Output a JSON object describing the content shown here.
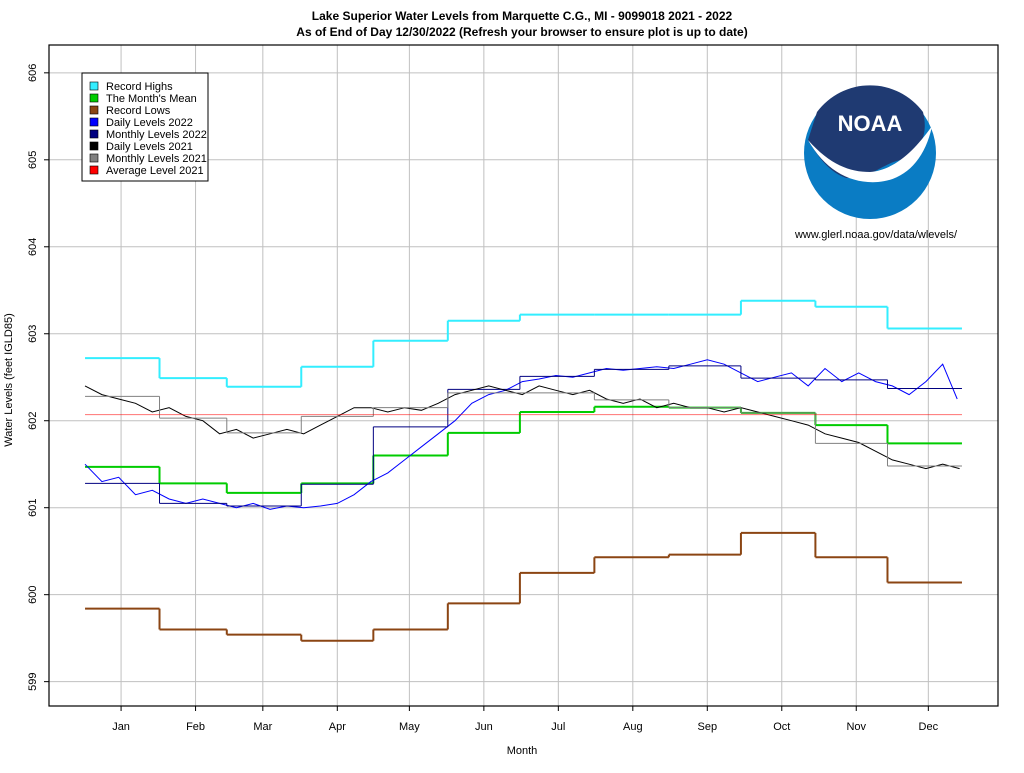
{
  "chart_data": {
    "type": "line",
    "title": "Lake Superior Water Levels from Marquette C.G., MI - 9099018 2021 - 2022",
    "subtitle": "As of End of Day 12/30/2022 (Refresh your browser to ensure plot is up to date)",
    "xlabel": "Month",
    "ylabel": "Water Levels (feet IGLD85)",
    "logo_text": "NOAA",
    "logo_url": "www.glerl.noaa.gov/data/wlevels/",
    "xlim": [
      -15,
      380
    ],
    "ylim": [
      598.72,
      606.32
    ],
    "xticks": [
      {
        "value": 15,
        "label": "Jan"
      },
      {
        "value": 46,
        "label": "Feb"
      },
      {
        "value": 74,
        "label": "Mar"
      },
      {
        "value": 105,
        "label": "Apr"
      },
      {
        "value": 135,
        "label": "May"
      },
      {
        "value": 166,
        "label": "Jun"
      },
      {
        "value": 197,
        "label": "Jul"
      },
      {
        "value": 228,
        "label": "Aug"
      },
      {
        "value": 259,
        "label": "Sep"
      },
      {
        "value": 290,
        "label": "Oct"
      },
      {
        "value": 321,
        "label": "Nov"
      },
      {
        "value": 351,
        "label": "Dec"
      }
    ],
    "yticks": [
      599,
      600,
      601,
      602,
      603,
      604,
      605,
      606
    ],
    "grid": true,
    "legend": "upper left",
    "step_edges": [
      0,
      31,
      59,
      90,
      120,
      151,
      181,
      212,
      243,
      273,
      304,
      334,
      365
    ],
    "series": [
      {
        "name": "Record Highs",
        "color": "#33eeff",
        "drawstyle": "steps",
        "values": [
          602.72,
          602.49,
          602.39,
          602.62,
          602.92,
          603.15,
          603.22,
          603.22,
          603.22,
          603.38,
          603.31,
          603.06
        ]
      },
      {
        "name": "The Month's Mean",
        "color": "#00cc00",
        "drawstyle": "steps",
        "values": [
          601.47,
          601.28,
          601.17,
          601.28,
          601.6,
          601.86,
          602.1,
          602.16,
          602.15,
          602.09,
          601.95,
          601.74
        ]
      },
      {
        "name": "Record Lows",
        "color": "#8b4513",
        "drawstyle": "steps",
        "values": [
          599.84,
          599.6,
          599.54,
          599.47,
          599.6,
          599.9,
          600.25,
          600.43,
          600.46,
          600.71,
          600.43,
          600.14
        ]
      },
      {
        "name": "Daily Levels 2022",
        "color": "#0000ff",
        "x": [
          0,
          7,
          14,
          21,
          28,
          35,
          42,
          49,
          56,
          63,
          70,
          77,
          84,
          91,
          98,
          105,
          112,
          119,
          126,
          133,
          140,
          147,
          154,
          161,
          168,
          175,
          182,
          189,
          196,
          203,
          210,
          217,
          224,
          231,
          238,
          245,
          252,
          259,
          266,
          273,
          280,
          287,
          294,
          301,
          308,
          315,
          322,
          329,
          336,
          343,
          350,
          357,
          363
        ],
        "values": [
          601.5,
          601.3,
          601.35,
          601.15,
          601.2,
          601.1,
          601.05,
          601.1,
          601.05,
          601.0,
          601.05,
          600.98,
          601.02,
          601.0,
          601.02,
          601.05,
          601.15,
          601.3,
          601.4,
          601.55,
          601.7,
          601.85,
          602.0,
          602.2,
          602.3,
          602.35,
          602.45,
          602.48,
          602.52,
          602.5,
          602.55,
          602.6,
          602.58,
          602.6,
          602.62,
          602.6,
          602.65,
          602.7,
          602.65,
          602.55,
          602.45,
          602.5,
          602.55,
          602.4,
          602.6,
          602.45,
          602.55,
          602.45,
          602.4,
          602.3,
          602.45,
          602.65,
          602.25
        ]
      },
      {
        "name": "Monthly Levels 2022",
        "color": "#000080",
        "drawstyle": "steps",
        "values": [
          601.28,
          601.05,
          601.02,
          601.27,
          601.93,
          602.36,
          602.51,
          602.59,
          602.63,
          602.49,
          602.47,
          602.37
        ]
      },
      {
        "name": "Daily Levels 2021",
        "color": "#000000",
        "x": [
          0,
          7,
          14,
          21,
          28,
          35,
          42,
          49,
          56,
          63,
          70,
          77,
          84,
          91,
          98,
          105,
          112,
          119,
          126,
          133,
          140,
          147,
          154,
          161,
          168,
          175,
          182,
          189,
          196,
          203,
          210,
          217,
          224,
          231,
          238,
          245,
          252,
          259,
          266,
          273,
          280,
          287,
          294,
          301,
          308,
          315,
          322,
          329,
          336,
          343,
          350,
          357,
          364
        ],
        "values": [
          602.4,
          602.3,
          602.25,
          602.2,
          602.1,
          602.15,
          602.05,
          602.0,
          601.85,
          601.9,
          601.8,
          601.85,
          601.9,
          601.85,
          601.95,
          602.05,
          602.15,
          602.15,
          602.1,
          602.15,
          602.12,
          602.2,
          602.3,
          602.35,
          602.4,
          602.35,
          602.3,
          602.4,
          602.35,
          602.3,
          602.35,
          602.25,
          602.2,
          602.25,
          602.15,
          602.2,
          602.15,
          602.15,
          602.1,
          602.15,
          602.1,
          602.05,
          602.0,
          601.95,
          601.85,
          601.8,
          601.75,
          601.65,
          601.55,
          601.5,
          601.45,
          601.5,
          601.45
        ]
      },
      {
        "name": "Monthly Levels 2021",
        "color": "#808080",
        "drawstyle": "steps",
        "values": [
          602.28,
          602.03,
          601.86,
          602.05,
          602.15,
          602.32,
          602.32,
          602.24,
          602.15,
          602.09,
          601.74,
          601.48
        ]
      },
      {
        "name": "Average Level 2021",
        "color": "#ff0000",
        "x": [
          0,
          365
        ],
        "values": [
          602.07,
          602.07
        ]
      }
    ]
  }
}
